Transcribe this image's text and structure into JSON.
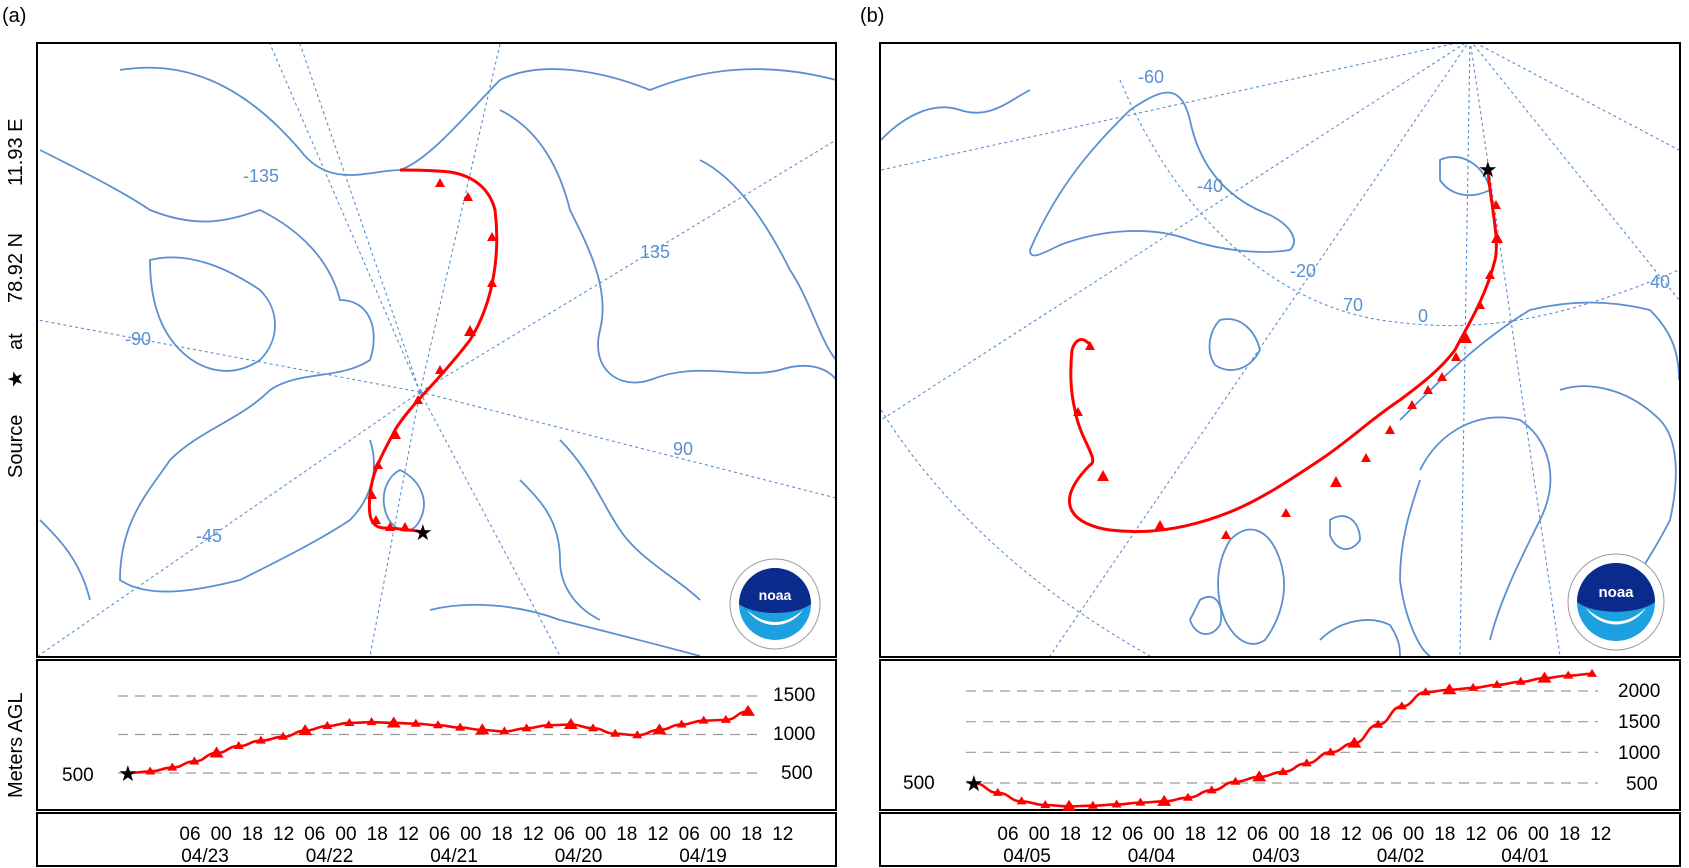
{
  "source_label": {
    "source": "Source",
    "at": "at",
    "lat": "78.92 N",
    "lon": "11.93 E",
    "star": "★"
  },
  "ylabel": "Meters AGL",
  "colors": {
    "trajectory": "#ff0000",
    "coast": "#5b8fd0",
    "grid": "#5b8fd0",
    "noaa_dark": "#0a2a8c",
    "noaa_light": "#1da0e0"
  },
  "logo": {
    "name": "noaa-logo",
    "text": "noaa"
  },
  "panels": [
    {
      "id": "a",
      "letter": "(a)",
      "lon_labels": [
        "-135",
        "135",
        "-90",
        "90",
        "-45"
      ],
      "height": {
        "start_label": "500",
        "levels": [
          "1500",
          "1000",
          "500"
        ],
        "values": [
          500,
          520,
          570,
          650,
          760,
          850,
          920,
          970,
          1050,
          1110,
          1150,
          1160,
          1150,
          1140,
          1120,
          1090,
          1060,
          1040,
          1080,
          1120,
          1130,
          1080,
          1010,
          990,
          1060,
          1130,
          1180,
          1190,
          1300
        ]
      },
      "time_axis": {
        "hours": [
          "06",
          "00",
          "18",
          "12",
          "06",
          "00",
          "18",
          "12",
          "06",
          "00",
          "18",
          "12",
          "06",
          "00",
          "18",
          "12",
          "06",
          "00",
          "18",
          "12"
        ],
        "dates": [
          "04/23",
          "04/22",
          "04/21",
          "04/20",
          "04/19"
        ]
      }
    },
    {
      "id": "b",
      "letter": "(b)",
      "lon_labels": [
        "-60",
        "-40",
        "-20",
        "0",
        "40",
        "70"
      ],
      "height": {
        "start_label": "500",
        "levels": [
          "2000",
          "1500",
          "1000",
          "500"
        ],
        "values": [
          500,
          340,
          200,
          140,
          120,
          130,
          150,
          180,
          200,
          260,
          380,
          520,
          600,
          680,
          820,
          1000,
          1150,
          1450,
          1750,
          1980,
          2020,
          2050,
          2100,
          2150,
          2210,
          2250,
          2280
        ]
      },
      "time_axis": {
        "hours": [
          "06",
          "00",
          "18",
          "12",
          "06",
          "00",
          "18",
          "12",
          "06",
          "00",
          "18",
          "12",
          "06",
          "00",
          "18",
          "12",
          "06",
          "00",
          "18",
          "12"
        ],
        "dates": [
          "04/05",
          "04/04",
          "04/03",
          "04/02",
          "04/01"
        ]
      }
    }
  ]
}
